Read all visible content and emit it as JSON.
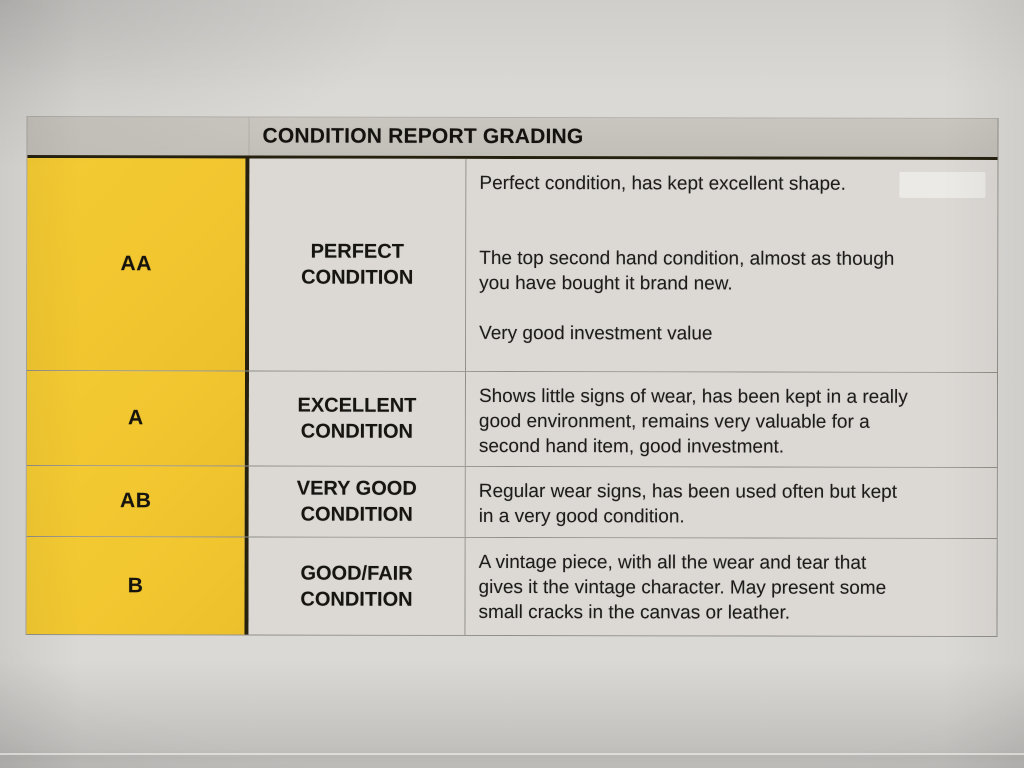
{
  "title": "CONDITION REPORT GRADING",
  "rows": [
    {
      "grade": "AA",
      "label_lines": [
        "PERFECT",
        "CONDITION"
      ],
      "paragraphs": [
        [
          "Perfect condition, has kept excellent shape."
        ],
        [
          ""
        ],
        [
          ""
        ],
        [
          "The top second hand condition, almost as though",
          "you have bought it brand new."
        ],
        [
          ""
        ],
        [
          "Very good investment value"
        ]
      ]
    },
    {
      "grade": "A",
      "label_lines": [
        "EXCELLENT",
        "CONDITION"
      ],
      "paragraphs": [
        [
          "Shows little signs of wear, has been kept in a really",
          "good environment, remains very valuable for a",
          "second hand item, good investment."
        ]
      ]
    },
    {
      "grade": "AB",
      "label_lines": [
        "VERY GOOD",
        "CONDITION"
      ],
      "paragraphs": [
        [
          "Regular wear signs, has been used often but kept",
          "in a very good condition."
        ]
      ]
    },
    {
      "grade": "B",
      "label_lines": [
        "GOOD/FAIR",
        "CONDITION"
      ],
      "paragraphs": [
        [
          "A vintage piece, with all the wear and tear that",
          "gives it the vintage character. May present some",
          "small cracks in the canvas or leather."
        ]
      ]
    }
  ],
  "colors": {
    "paper_bg": "#dbd9d6",
    "header_bg": "#c6c2bc",
    "grade_bg": "#f1c62f",
    "cell_bg": "#dcd9d5",
    "text": "#1b1b1b",
    "heavy_border": "#26210f",
    "light_border": "#918e88"
  }
}
